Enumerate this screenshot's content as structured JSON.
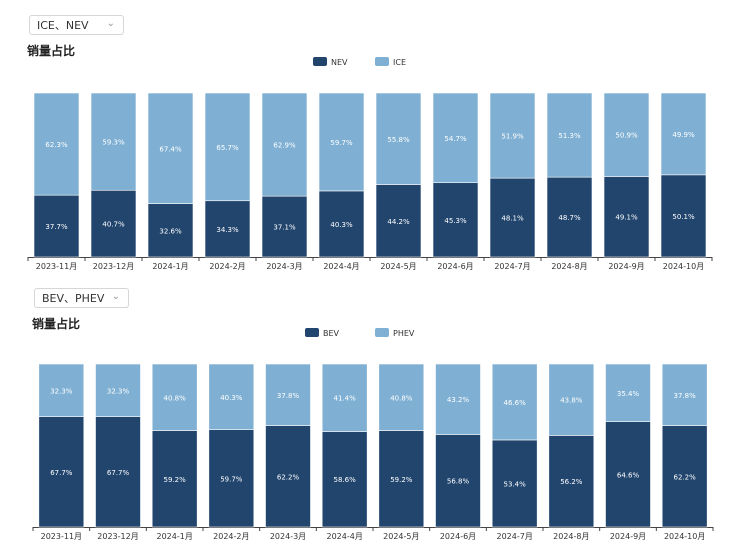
{
  "charts": [
    {
      "dropdown": "ICE、NEV",
      "title": "销量占比",
      "chart_data": {
        "type": "bar",
        "stacked": true,
        "normalized": true,
        "categories": [
          "2023-11月",
          "2023-12月",
          "2024-1月",
          "2024-2月",
          "2024-3月",
          "2024-4月",
          "2024-5月",
          "2024-6月",
          "2024-7月",
          "2024-8月",
          "2024-9月",
          "2024-10月"
        ],
        "series": [
          {
            "name": "NEV",
            "color": "#22456e",
            "values": [
              37.7,
              40.7,
              32.6,
              34.3,
              37.1,
              40.3,
              44.2,
              45.3,
              48.1,
              48.7,
              49.1,
              50.1
            ],
            "labels": [
              "37.7%",
              "40.7%",
              "32.6%",
              "34.3%",
              "37.1%",
              "40.3%",
              "44.2%",
              "45.3%",
              "48.1%",
              "48.7%",
              "49.1%",
              "50.1%"
            ]
          },
          {
            "name": "ICE",
            "color": "#7fb0d3",
            "values": [
              62.3,
              59.3,
              67.4,
              65.7,
              62.9,
              59.7,
              55.8,
              54.7,
              51.9,
              51.3,
              50.9,
              49.9
            ],
            "labels": [
              "62.3%",
              "59.3%",
              "67.4%",
              "65.7%",
              "62.9%",
              "59.7%",
              "55.8%",
              "54.7%",
              "51.9%",
              "51.3%",
              "50.9%",
              "49.9%"
            ]
          }
        ],
        "ylim": [
          0,
          100
        ],
        "legend": "top-center",
        "grid": false
      }
    },
    {
      "dropdown": "BEV、PHEV",
      "title": "销量占比",
      "chart_data": {
        "type": "bar",
        "stacked": true,
        "normalized": true,
        "categories": [
          "2023-11月",
          "2023-12月",
          "2024-1月",
          "2024-2月",
          "2024-3月",
          "2024-4月",
          "2024-5月",
          "2024-6月",
          "2024-7月",
          "2024-8月",
          "2024-9月",
          "2024-10月"
        ],
        "series": [
          {
            "name": "BEV",
            "color": "#22456e",
            "values": [
              67.7,
              67.7,
              59.2,
              59.7,
              62.2,
              58.6,
              59.2,
              56.8,
              53.4,
              56.2,
              64.6,
              62.2
            ],
            "labels": [
              "67.7%",
              "67.7%",
              "59.2%",
              "59.7%",
              "62.2%",
              "58.6%",
              "59.2%",
              "56.8%",
              "53.4%",
              "56.2%",
              "64.6%",
              "62.2%"
            ]
          },
          {
            "name": "PHEV",
            "color": "#7fb0d3",
            "values": [
              32.3,
              32.3,
              40.8,
              40.3,
              37.8,
              41.4,
              40.8,
              43.2,
              46.6,
              43.8,
              35.4,
              37.8
            ],
            "labels": [
              "32.3%",
              "32.3%",
              "40.8%",
              "40.3%",
              "37.8%",
              "41.4%",
              "40.8%",
              "43.2%",
              "46.6%",
              "43.8%",
              "35.4%",
              "37.8%"
            ]
          }
        ],
        "ylim": [
          0,
          100
        ],
        "legend": "top-center",
        "grid": false
      }
    }
  ]
}
